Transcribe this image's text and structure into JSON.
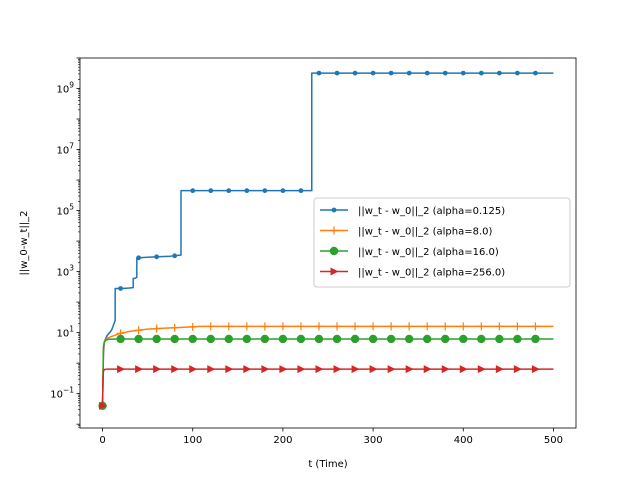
{
  "chart_data": {
    "type": "line",
    "title": "",
    "xlabel": "t (Time)",
    "ylabel": "||w_0-w_t||_2",
    "xlim": [
      -25,
      525
    ],
    "ylim": [
      0.0075,
      10000000000
    ],
    "yscale": "log",
    "grid": false,
    "legend_position": "center-right",
    "x_ticks": [
      {
        "value": 0,
        "label": "0"
      },
      {
        "value": 100,
        "label": "100"
      },
      {
        "value": 200,
        "label": "200"
      },
      {
        "value": 300,
        "label": "300"
      },
      {
        "value": 400,
        "label": "400"
      },
      {
        "value": 500,
        "label": "500"
      }
    ],
    "y_ticks": [
      {
        "value": 0.1,
        "base": "10",
        "exp": "−1"
      },
      {
        "value": 10,
        "base": "10",
        "exp": "1"
      },
      {
        "value": 1000,
        "base": "10",
        "exp": "3"
      },
      {
        "value": 100000,
        "base": "10",
        "exp": "5"
      },
      {
        "value": 10000000,
        "base": "10",
        "exp": "7"
      },
      {
        "value": 1000000000,
        "base": "10",
        "exp": "9"
      }
    ],
    "series": [
      {
        "name": "||w_t - w_0||_2 (alpha=0.125)",
        "color": "#1f77b4",
        "marker": "dot",
        "x": [
          0,
          1,
          2,
          5,
          10,
          14,
          14,
          18,
          22,
          26,
          30,
          34,
          34,
          36,
          38,
          38,
          45,
          55,
          65,
          75,
          80,
          87,
          87,
          90,
          110,
          130,
          150,
          170,
          190,
          210,
          232,
          232,
          235,
          260,
          280,
          300,
          320,
          340,
          360,
          380,
          400,
          420,
          440,
          460,
          480,
          500
        ],
        "y": [
          0.04,
          2,
          5,
          8,
          12,
          25,
          280,
          280,
          280,
          285,
          290,
          300,
          600,
          600,
          650,
          2800,
          2900,
          3000,
          3100,
          3200,
          3300,
          3500,
          450000,
          450000,
          450000,
          450000,
          450000,
          450000,
          450000,
          450000,
          450000,
          3200000000,
          3200000000,
          3200000000,
          3200000000,
          3200000000,
          3200000000,
          3200000000,
          3200000000,
          3200000000,
          3200000000,
          3200000000,
          3200000000,
          3200000000,
          3200000000,
          3200000000
        ],
        "marker_x": [
          20,
          40,
          60,
          80,
          100,
          120,
          140,
          160,
          180,
          200,
          220,
          240,
          260,
          280,
          300,
          320,
          340,
          360,
          380,
          400,
          420,
          440,
          460,
          480
        ]
      },
      {
        "name": "||w_t - w_0||_2 (alpha=8.0)",
        "color": "#ff7f0e",
        "marker": "plus",
        "x": [
          0,
          1,
          2,
          5,
          10,
          20,
          30,
          40,
          50,
          60,
          70,
          80,
          90,
          100,
          110,
          120,
          140,
          160,
          180,
          200,
          220,
          240,
          260,
          280,
          300,
          320,
          340,
          360,
          380,
          400,
          420,
          440,
          460,
          480,
          500
        ],
        "y": [
          0.04,
          3,
          5,
          6.5,
          7.5,
          9.5,
          11,
          12,
          13,
          13.5,
          14,
          14.5,
          15,
          15.5,
          16,
          16,
          16,
          16,
          16,
          16,
          16,
          16,
          16,
          16,
          16,
          16,
          16,
          16,
          16,
          16,
          16,
          16,
          16,
          16,
          16
        ],
        "marker_x": [
          0,
          20,
          40,
          60,
          80,
          100,
          120,
          140,
          160,
          180,
          200,
          220,
          240,
          260,
          280,
          300,
          320,
          340,
          360,
          380,
          400,
          420,
          440,
          460,
          480
        ]
      },
      {
        "name": "||w_t - w_0||_2 (alpha=16.0)",
        "color": "#2ca02c",
        "marker": "circle",
        "x": [
          0,
          1,
          2,
          4,
          8,
          15,
          30,
          60,
          100,
          200,
          300,
          400,
          500
        ],
        "y": [
          0.04,
          3.5,
          5,
          5.8,
          6.1,
          6.2,
          6.2,
          6.2,
          6.2,
          6.2,
          6.2,
          6.2,
          6.2
        ],
        "marker_x": [
          0,
          20,
          40,
          60,
          80,
          100,
          120,
          140,
          160,
          180,
          200,
          220,
          240,
          260,
          280,
          300,
          320,
          340,
          360,
          380,
          400,
          420,
          440,
          460,
          480
        ]
      },
      {
        "name": "||w_t - w_0||_2 (alpha=256.0)",
        "color": "#d62728",
        "marker": "triangle-right",
        "x": [
          0,
          0.5,
          1,
          2,
          5,
          20,
          100,
          200,
          300,
          400,
          500
        ],
        "y": [
          0.04,
          0.3,
          0.55,
          0.62,
          0.64,
          0.64,
          0.64,
          0.64,
          0.64,
          0.64,
          0.64
        ],
        "marker_x": [
          0,
          20,
          40,
          60,
          80,
          100,
          120,
          140,
          160,
          180,
          200,
          220,
          240,
          260,
          280,
          300,
          320,
          340,
          360,
          380,
          400,
          420,
          440,
          460,
          480
        ]
      }
    ]
  }
}
